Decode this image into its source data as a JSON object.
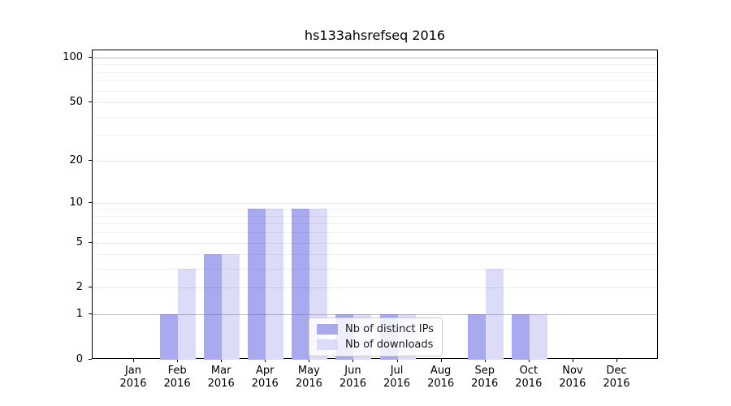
{
  "title": "hs133ahsrefseq 2016",
  "chart_data": {
    "type": "bar",
    "title": "hs133ahsrefseq 2016",
    "categories": [
      "Jan 2016",
      "Feb 2016",
      "Mar 2016",
      "Apr 2016",
      "May 2016",
      "Jun 2016",
      "Jul 2016",
      "Aug 2016",
      "Sep 2016",
      "Oct 2016",
      "Nov 2016",
      "Dec 2016"
    ],
    "series": [
      {
        "name": "Nb of distinct IPs",
        "color": "#a9a9ef",
        "values": [
          0,
          1,
          4,
          9,
          9,
          1,
          1,
          0,
          1,
          1,
          0,
          0
        ]
      },
      {
        "name": "Nb of downloads",
        "color": "#dcdcf8",
        "values": [
          0,
          3,
          4,
          9,
          9,
          1,
          1,
          0,
          3,
          1,
          0,
          0
        ]
      }
    ],
    "yscale": "log1p",
    "ylim": [
      0,
      112
    ],
    "ytick_values": [
      0,
      1,
      2,
      5,
      10,
      20,
      50,
      100
    ],
    "yminor_values": [
      3,
      4,
      6,
      7,
      8,
      9,
      30,
      40,
      60,
      70,
      80,
      90
    ],
    "ymajor_grid_values": [
      1,
      100
    ],
    "grid": true,
    "xlabel": "",
    "ylabel": "",
    "legend": {
      "labels": [
        "Nb of distinct IPs",
        "Nb of downloads"
      ],
      "position": "inside-lower-center"
    }
  },
  "colors": {
    "distinct_ips_bar": "#a9a9ef",
    "downloads_bar": "#dcdcf8",
    "axis": "#000000",
    "major_grid": "#9a9a9a",
    "minor_grid": "#ebebeb",
    "legend_border": "#cccccc"
  }
}
